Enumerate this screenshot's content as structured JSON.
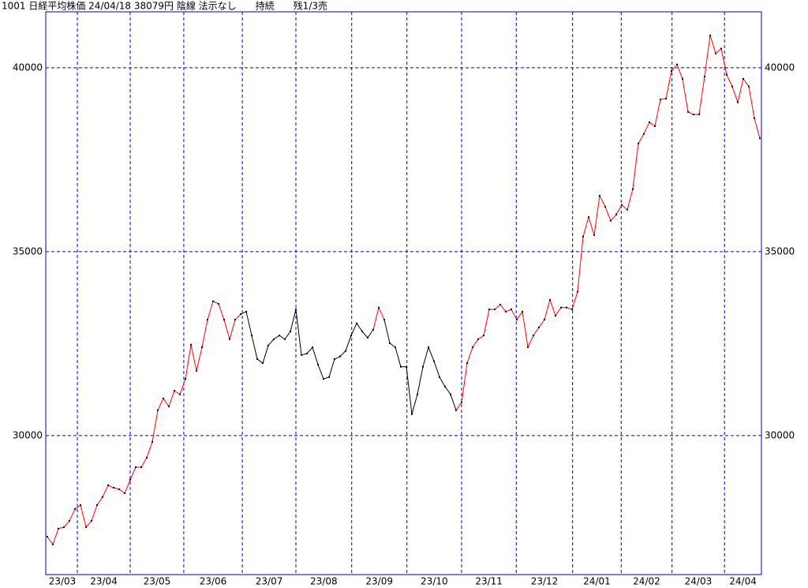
{
  "chart_data": {
    "type": "line",
    "title": "1001 日経平均株価 24/04/18 38079円 陰線 法示なし　　持続　　残1/3売",
    "values": [
      27250,
      27040,
      27470,
      27510,
      27680,
      28000,
      28110,
      27510,
      27680,
      28110,
      28330,
      28650,
      28580,
      28540,
      28430,
      28800,
      29140,
      29140,
      29400,
      29830,
      30690,
      31010,
      30790,
      31220,
      31120,
      31540,
      32470,
      31760,
      32400,
      33150,
      33650,
      33580,
      33150,
      32620,
      33150,
      33300,
      33370,
      32720,
      32080,
      31970,
      32450,
      32620,
      32720,
      32620,
      32830,
      33430,
      32190,
      32230,
      32400,
      31930,
      31540,
      31590,
      32080,
      32150,
      32300,
      32720,
      33050,
      32830,
      32660,
      32880,
      33480,
      33150,
      32510,
      32400,
      31870,
      31870,
      30580,
      31120,
      31870,
      32400,
      32020,
      31590,
      31330,
      31120,
      30690,
      30900,
      31970,
      32400,
      32620,
      32720,
      33430,
      33430,
      33560,
      33370,
      33430,
      33150,
      33370,
      32400,
      32720,
      32940,
      33150,
      33690,
      33260,
      33480,
      33480,
      33430,
      33910,
      35410,
      35940,
      35450,
      36520,
      36220,
      35840,
      36010,
      36270,
      36140,
      36700,
      37940,
      38200,
      38520,
      38410,
      39140,
      39160,
      39910,
      40090,
      39700,
      38800,
      38730,
      38730,
      39760,
      40880,
      40390,
      40520,
      39810,
      39490,
      39060,
      39700,
      39490,
      38630,
      38080
    ],
    "segment_colors": [
      null,
      "red",
      "red",
      "red",
      "red",
      "red",
      "red",
      "red",
      "red",
      "red",
      "red",
      "red",
      "red",
      "red",
      "red",
      "red",
      "red",
      "red",
      "red",
      "red",
      "red",
      "red",
      "red",
      "red",
      "red",
      "red",
      "red",
      "red",
      "red",
      "red",
      "red",
      "red",
      "red",
      "red",
      "red",
      "red",
      "black",
      "black",
      "black",
      "black",
      "black",
      "black",
      "black",
      "black",
      "black",
      "black",
      "black",
      "black",
      "black",
      "black",
      "black",
      "black",
      "black",
      "black",
      "black",
      "black",
      "black",
      "black",
      "black",
      "black",
      "red",
      "red",
      "black",
      "black",
      "black",
      "black",
      "black",
      "black",
      "black",
      "black",
      "black",
      "black",
      "black",
      "black",
      "black",
      "red",
      "red",
      "red",
      "red",
      "red",
      "red",
      "red",
      "red",
      "red",
      "red",
      "red",
      "red",
      "red",
      "red",
      "red",
      "red",
      "red",
      "red",
      "red",
      "red",
      "red",
      "red",
      "red",
      "red",
      "red",
      "red",
      "red",
      "red",
      "red",
      "red",
      "red",
      "red",
      "red",
      "red",
      "red",
      "red",
      "red",
      "red",
      "red",
      "red",
      "red",
      "red",
      "red",
      "red",
      "red",
      "red",
      "red",
      "red",
      "red",
      "red",
      "red",
      "red",
      "red",
      "red",
      "red"
    ],
    "point_color": "black",
    "xlim": [
      -0.29,
      129.29
    ],
    "xticks": [
      {
        "value": 0,
        "label": "23/03"
      },
      {
        "value": 5.43,
        "label": "23/04"
      },
      {
        "value": 15,
        "label": "23/05"
      },
      {
        "value": 24.7,
        "label": "23/06"
      },
      {
        "value": 35.3,
        "label": "23/07"
      },
      {
        "value": 45,
        "label": "23/08"
      },
      {
        "value": 55.1,
        "label": "23/09"
      },
      {
        "value": 65.1,
        "label": "23/10"
      },
      {
        "value": 75,
        "label": "23/11"
      },
      {
        "value": 84.9,
        "label": "23/12"
      },
      {
        "value": 95.1,
        "label": "24/01"
      },
      {
        "value": 103.9,
        "label": "24/02"
      },
      {
        "value": 113.1,
        "label": "24/03"
      },
      {
        "value": 122.6,
        "label": "24/04"
      }
    ],
    "ylim": [
      26220,
      41520
    ],
    "yticks": [
      30000,
      35000,
      40000
    ],
    "grid": true,
    "grid_color": "#0000cc",
    "frame_color": "#0000aa"
  }
}
